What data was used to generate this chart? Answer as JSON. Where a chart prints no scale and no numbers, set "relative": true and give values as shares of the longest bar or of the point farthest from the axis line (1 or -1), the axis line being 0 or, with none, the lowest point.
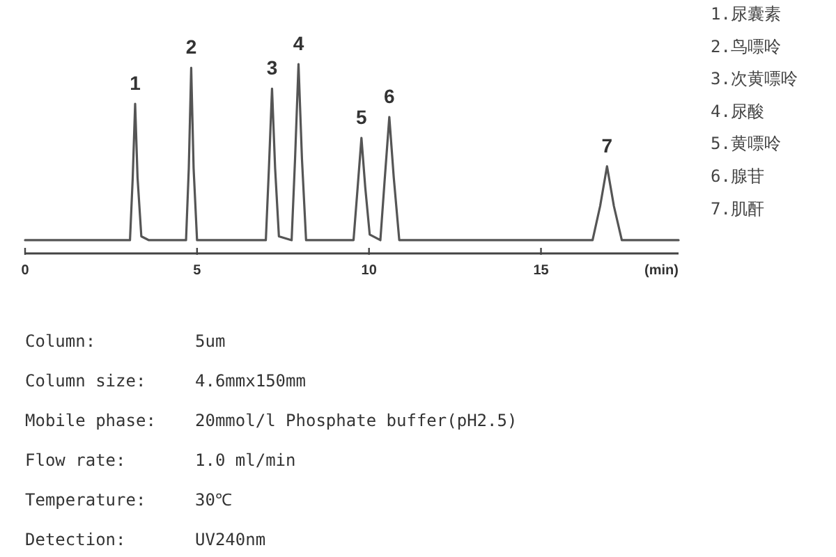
{
  "chart_data": {
    "type": "line",
    "relative": true,
    "xlabel": "(min)",
    "xlim": [
      0,
      19
    ],
    "xticks": [
      0,
      5,
      10,
      15
    ],
    "grid": false,
    "marker": "none",
    "line_style": "solid",
    "x": [
      0,
      3.05,
      3.13,
      3.2,
      3.27,
      3.38,
      3.6,
      4.68,
      4.76,
      4.83,
      4.9,
      5.0,
      7.0,
      7.09,
      7.18,
      7.27,
      7.38,
      7.75,
      7.85,
      7.95,
      8.05,
      8.17,
      9.55,
      9.67,
      9.78,
      9.89,
      10.02,
      10.33,
      10.46,
      10.59,
      10.72,
      10.88,
      16.5,
      16.72,
      16.92,
      17.12,
      17.35,
      19
    ],
    "series": [
      {
        "color": "#555555",
        "values": [
          0.07,
          0.07,
          0.4,
          0.79,
          0.4,
          0.09,
          0.07,
          0.07,
          0.45,
          0.98,
          0.45,
          0.07,
          0.07,
          0.45,
          0.87,
          0.45,
          0.09,
          0.07,
          0.5,
          1,
          0.5,
          0.07,
          0.07,
          0.35,
          0.61,
          0.35,
          0.1,
          0.07,
          0.4,
          0.72,
          0.4,
          0.07,
          0.07,
          0.25,
          0.46,
          0.25,
          0.07,
          0.07
        ]
      }
    ],
    "annotations": [
      {
        "text": "1",
        "x": 3.2,
        "y": 0.79
      },
      {
        "text": "2",
        "x": 4.83,
        "y": 0.98
      },
      {
        "text": "3",
        "x": 7.18,
        "y": 0.87
      },
      {
        "text": "4",
        "x": 7.95,
        "y": 1
      },
      {
        "text": "5",
        "x": 9.78,
        "y": 0.61
      },
      {
        "text": "6",
        "x": 10.59,
        "y": 0.72
      },
      {
        "text": "7",
        "x": 16.92,
        "y": 0.46
      },
      "1.尿囊素",
      "2.鸟嘌呤",
      "3.次黄嘌呤",
      "4.尿酸",
      "5.黄嘌呤",
      "6.腺苷",
      "7.肌酐",
      "Column:",
      "5um",
      "Column size:",
      "4.6mmx150mm",
      "Mobile phase:",
      "20mmol/l Phosphate buffer(pH2.5)",
      "Flow rate:",
      "1.0 ml/min",
      "Temperature:",
      "30℃",
      "Detection:",
      "UV240nm"
    ]
  }
}
